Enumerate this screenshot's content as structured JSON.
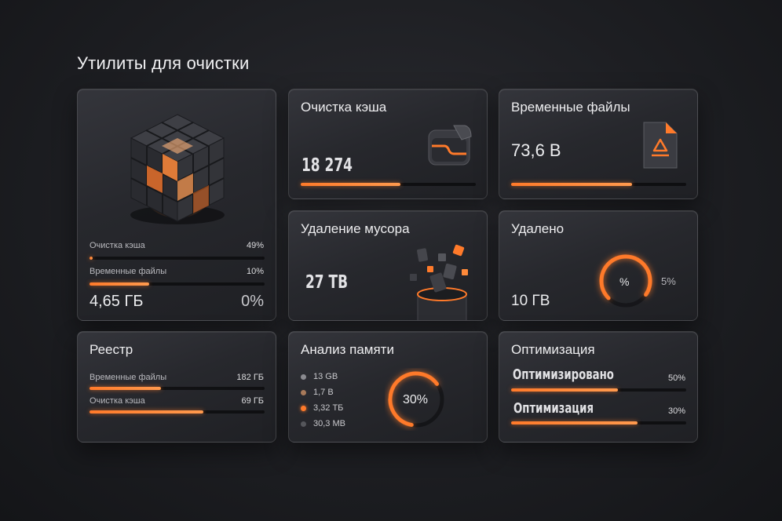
{
  "page": {
    "title": "Утилиты для очистки"
  },
  "colors": {
    "accent": "#ff7a2a",
    "background": "#1d1e22",
    "card": "#2a2b30"
  },
  "hero_card": {
    "image_icon": "glowing-cube-icon",
    "rows": [
      {
        "label": "Очистка кэша",
        "value": "49%",
        "progress": 0.02
      },
      {
        "label": "Временные файлы",
        "value": "10%",
        "progress": 0.34
      }
    ],
    "total_value": "4,65 ГБ",
    "total_percent": "0%"
  },
  "cache_card": {
    "title": "Очистка кэша",
    "value": "18 274",
    "progress": 0.57,
    "icon": "folder-icon"
  },
  "temp_card": {
    "title": "Временные файлы",
    "value": "73,6 В",
    "progress": 0.69,
    "icon": "recycle-file-icon"
  },
  "trash_card": {
    "title": "Удаление мусора",
    "value": "27 ТВ",
    "icon": "trash-bin-icon"
  },
  "deleted_card": {
    "title": "Удалено",
    "value": "10 ГВ",
    "gauge_label": "%",
    "gauge_side": "5%",
    "gauge_progress": 0.72
  },
  "registry_card": {
    "title": "Реестр",
    "rows": [
      {
        "label": "Временные файлы",
        "value": "182 ГБ",
        "progress": 0.41
      },
      {
        "label": "Очистка кэша",
        "value": "69 ГБ",
        "progress": 0.65
      }
    ]
  },
  "memory_card": {
    "title": "Анализ памяти",
    "legend": [
      {
        "label": "13 GB",
        "color": "#8b8b90"
      },
      {
        "label": "1,7 В",
        "color": "#a87a5a"
      },
      {
        "label": "3,32 ТБ",
        "color": "#ff7a2a"
      },
      {
        "label": "30,3 МВ",
        "color": "#55565b"
      }
    ],
    "gauge_label": "30%",
    "gauge_progress": 0.62
  },
  "optimization_card": {
    "title": "Оптимизация",
    "rows": [
      {
        "label": "Оптимизировано",
        "value": "50%",
        "progress": 0.61
      },
      {
        "label": "Оптимизация",
        "value": "30%",
        "progress": 0.72
      }
    ]
  }
}
